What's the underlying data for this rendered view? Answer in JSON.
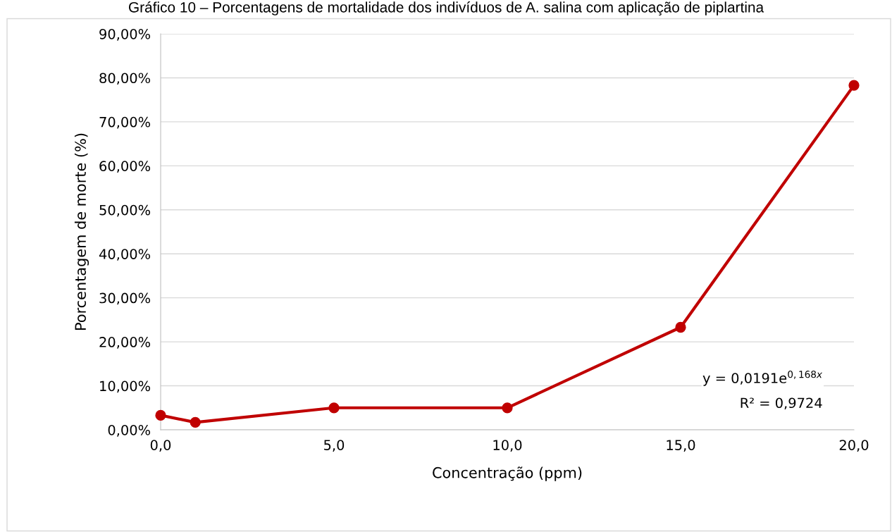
{
  "chart_data": {
    "type": "line",
    "title": "Gráfico 10 – Porcentagens de mortalidade dos indivíduos de A. salina com aplicação de piplartina",
    "xlabel": "Concentração (ppm)",
    "ylabel": "Porcentagem de morte (%)",
    "x": [
      0,
      1,
      5,
      10,
      15,
      20
    ],
    "series": [
      {
        "color": "#c00000",
        "values": [
          3.3,
          1.7,
          5.0,
          5.0,
          23.3,
          78.3
        ]
      }
    ],
    "xlim": [
      0,
      20
    ],
    "xticks": [
      {
        "value": 0,
        "label": "0,0"
      },
      {
        "value": 5,
        "label": "5,0"
      },
      {
        "value": 10,
        "label": "10,0"
      },
      {
        "value": 15,
        "label": "15,0"
      },
      {
        "value": 20,
        "label": "20,0"
      }
    ],
    "ylim": [
      0,
      90
    ],
    "yticks": [
      {
        "value": 0,
        "label": "0,00%"
      },
      {
        "value": 10,
        "label": "10,00%"
      },
      {
        "value": 20,
        "label": "20,00%"
      },
      {
        "value": 30,
        "label": "30,00%"
      },
      {
        "value": 40,
        "label": "40,00%"
      },
      {
        "value": 50,
        "label": "50,00%"
      },
      {
        "value": 60,
        "label": "60,00%"
      },
      {
        "value": 70,
        "label": "70,00%"
      },
      {
        "value": 80,
        "label": "80,00%"
      },
      {
        "value": 90,
        "label": "90,00%"
      }
    ],
    "grid": "y",
    "marker": "circle",
    "line_style": "solid",
    "legend": false,
    "annotations": [
      "y = 0,0191e$^{0,168x}$",
      "R² = 0,9724"
    ]
  }
}
